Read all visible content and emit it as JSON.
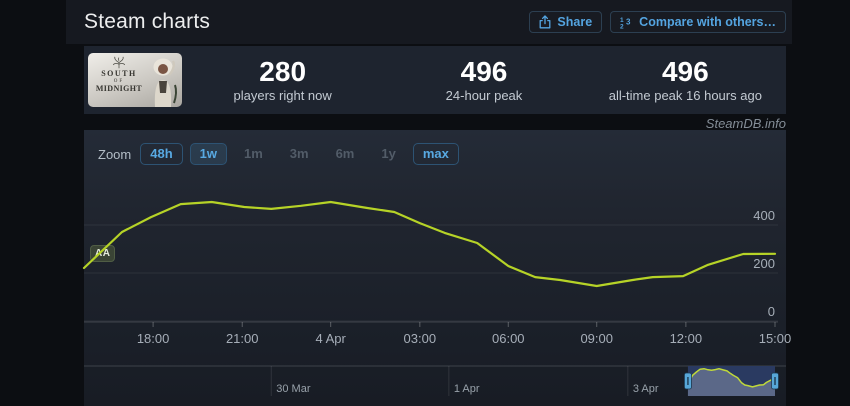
{
  "page": {
    "title": "Steam charts",
    "watermark": "SteamDB.info"
  },
  "header": {
    "share_button": {
      "label": "Share"
    },
    "compare_button": {
      "label": "Compare with others…"
    }
  },
  "stats": {
    "capsule": {
      "game": "South of Midnight",
      "logo_lines": [
        "SOUTH",
        "OF",
        "MIDNIGHT"
      ]
    },
    "items": [
      {
        "value": "280",
        "label": "players right now"
      },
      {
        "value": "496",
        "label": "24-hour peak"
      },
      {
        "value": "496",
        "label": "all-time peak 16 hours ago"
      }
    ]
  },
  "zoom": {
    "label": "Zoom",
    "buttons": [
      {
        "label": "48h",
        "state": "outlined"
      },
      {
        "label": "1w",
        "state": "active"
      },
      {
        "label": "1m",
        "state": "disabled"
      },
      {
        "label": "3m",
        "state": "disabled"
      },
      {
        "label": "6m",
        "state": "disabled"
      },
      {
        "label": "1y",
        "state": "disabled"
      },
      {
        "label": "max",
        "state": "outlined"
      }
    ]
  },
  "flag": {
    "label": "AA"
  },
  "chart_data": {
    "type": "line",
    "series_name": "Players",
    "line_color": "#b6d327",
    "ylim": [
      0,
      630
    ],
    "y_ticks": [
      0,
      200,
      400
    ],
    "grid": true,
    "x_ticks": [
      {
        "label": "18:00",
        "f": 0.1
      },
      {
        "label": "21:00",
        "f": 0.229
      },
      {
        "label": "4 Apr",
        "f": 0.357
      },
      {
        "label": "03:00",
        "f": 0.486
      },
      {
        "label": "06:00",
        "f": 0.614
      },
      {
        "label": "09:00",
        "f": 0.742
      },
      {
        "label": "12:00",
        "f": 0.871
      },
      {
        "label": "15:00",
        "f": 1.0
      }
    ],
    "points": [
      {
        "t": "3 Apr 15:40",
        "v": 221,
        "f": 0.0
      },
      {
        "t": "3 Apr 16:55",
        "v": 371,
        "f": 0.055
      },
      {
        "t": "3 Apr 17:55",
        "v": 433,
        "f": 0.097
      },
      {
        "t": "3 Apr 18:55",
        "v": 487,
        "f": 0.14
      },
      {
        "t": "3 Apr 20:00",
        "v": 496,
        "f": 0.185
      },
      {
        "t": "3 Apr 21:05",
        "v": 475,
        "f": 0.232
      },
      {
        "t": "3 Apr 22:00",
        "v": 467,
        "f": 0.271
      },
      {
        "t": "3 Apr 23:00",
        "v": 480,
        "f": 0.314
      },
      {
        "t": "4 Apr 00:00",
        "v": 496,
        "f": 0.357
      },
      {
        "t": "4 Apr 01:15",
        "v": 471,
        "f": 0.41
      },
      {
        "t": "4 Apr 02:10",
        "v": 454,
        "f": 0.449
      },
      {
        "t": "4 Apr 03:00",
        "v": 408,
        "f": 0.486
      },
      {
        "t": "4 Apr 03:50",
        "v": 367,
        "f": 0.522
      },
      {
        "t": "4 Apr 04:55",
        "v": 325,
        "f": 0.569
      },
      {
        "t": "4 Apr 06:00",
        "v": 229,
        "f": 0.614
      },
      {
        "t": "4 Apr 06:55",
        "v": 183,
        "f": 0.653
      },
      {
        "t": "4 Apr 07:45",
        "v": 171,
        "f": 0.689
      },
      {
        "t": "4 Apr 09:00",
        "v": 146,
        "f": 0.742
      },
      {
        "t": "4 Apr 10:10",
        "v": 171,
        "f": 0.794
      },
      {
        "t": "4 Apr 10:50",
        "v": 183,
        "f": 0.823
      },
      {
        "t": "4 Apr 11:55",
        "v": 187,
        "f": 0.867
      },
      {
        "t": "4 Apr 12:40",
        "v": 233,
        "f": 0.902
      },
      {
        "t": "4 Apr 13:55",
        "v": 279,
        "f": 0.954
      },
      {
        "t": "4 Apr 15:00",
        "v": 280,
        "f": 1.0
      }
    ],
    "navigator": {
      "labels": [
        {
          "label": "30 Mar",
          "f": 0.271
        },
        {
          "label": "1 Apr",
          "f": 0.528
        },
        {
          "label": "3 Apr",
          "f": 0.787
        }
      ],
      "selection": {
        "from_f": 0.874,
        "to_f": 1.0
      }
    }
  }
}
